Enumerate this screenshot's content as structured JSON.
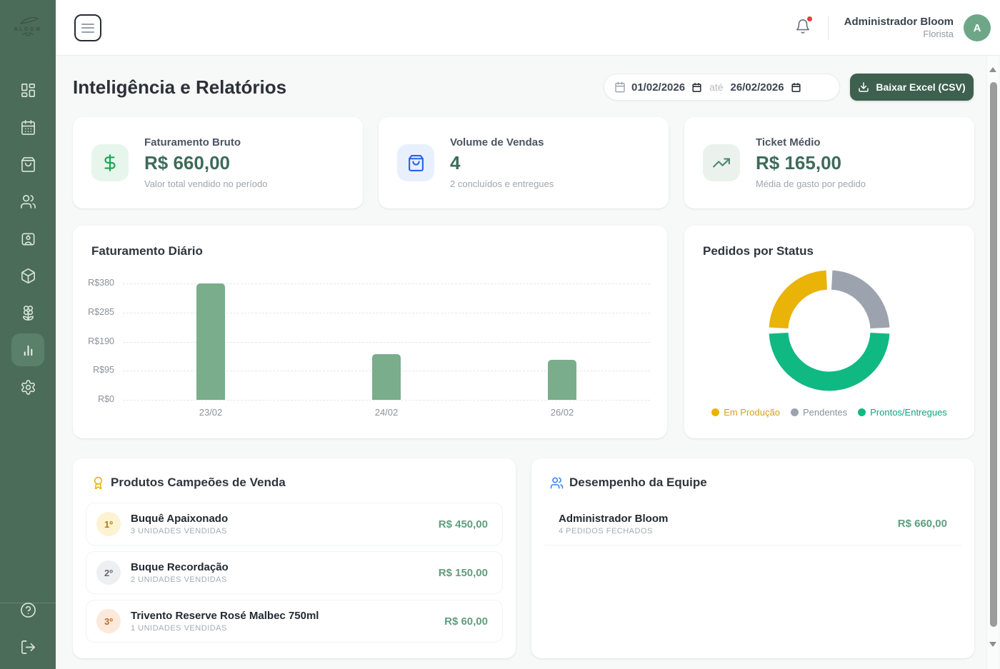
{
  "sidebar": {
    "logo_text": "BLOOM",
    "items": [
      {
        "name": "dashboard",
        "active": false
      },
      {
        "name": "calendar",
        "active": false
      },
      {
        "name": "orders",
        "active": false
      },
      {
        "name": "customers",
        "active": false
      },
      {
        "name": "staff",
        "active": false
      },
      {
        "name": "products",
        "active": false
      },
      {
        "name": "flowers",
        "active": false
      },
      {
        "name": "reports",
        "active": true
      },
      {
        "name": "settings",
        "active": false
      }
    ],
    "footer_items": [
      {
        "name": "help"
      },
      {
        "name": "logout"
      }
    ]
  },
  "topbar": {
    "user_name": "Administrador Bloom",
    "user_role": "Florista",
    "avatar_initial": "A",
    "has_notification": true
  },
  "page_header": {
    "title": "Inteligência e Relatórios",
    "date_from": "01/02/2026",
    "date_separator": "até",
    "date_to": "26/02/2026",
    "export_button_label": "Baixar Excel (CSV)"
  },
  "kpis": [
    {
      "title": "Faturamento Bruto",
      "value": "R$ 660,00",
      "subtitle": "Valor total vendido no período",
      "icon": "dollar-icon"
    },
    {
      "title": "Volume de Vendas",
      "value": "4",
      "subtitle": "2 concluídos e entregues",
      "icon": "shopping-bag-icon"
    },
    {
      "title": "Ticket Médio",
      "value": "R$ 165,00",
      "subtitle": "Média de gasto por pedido",
      "icon": "trending-up-icon"
    }
  ],
  "chart_data": [
    {
      "type": "bar",
      "title": "Faturamento Diário",
      "categories": [
        "23/02",
        "24/02",
        "26/02"
      ],
      "values": [
        380,
        150,
        130
      ],
      "ylim": [
        0,
        380
      ],
      "y_tick_labels": [
        "R$380",
        "R$285",
        "R$190",
        "R$95",
        "R$0"
      ],
      "bar_color": "#7aad8b",
      "grid": "horizontal-dashed",
      "xlabel": "",
      "ylabel": ""
    },
    {
      "type": "pie",
      "variant": "donut",
      "title": "Pedidos por Status",
      "slices": [
        {
          "label": "Pendentes",
          "value": 1,
          "color": "#9ca3af"
        },
        {
          "label": "Prontos/Entregues",
          "value": 2,
          "color": "#10b981"
        },
        {
          "label": "Em Produção",
          "value": 1,
          "color": "#eab308"
        }
      ],
      "legend": [
        {
          "label": "Em Produção",
          "color": "#d4a014",
          "dot": "#eab308"
        },
        {
          "label": "Pendentes",
          "color": "#8b919a",
          "dot": "#9ca3af"
        },
        {
          "label": "Prontos/Entregues",
          "color": "#10a482",
          "dot": "#10b981"
        }
      ],
      "legend_position": "bottom",
      "start_angle": "top",
      "direction": "clockwise"
    }
  ],
  "top_products": {
    "title": "Produtos Campeões de Venda",
    "items": [
      {
        "rank": "1º",
        "name": "Buquê Apaixonado",
        "detail": "3 UNIDADES VENDIDAS",
        "amount": "R$ 450,00"
      },
      {
        "rank": "2º",
        "name": "Buque Recordação",
        "detail": "2 UNIDADES VENDIDAS",
        "amount": "R$ 150,00"
      },
      {
        "rank": "3º",
        "name": "Trivento Reserve Rosé Malbec 750ml",
        "detail": "1 UNIDADES VENDIDAS",
        "amount": "R$ 60,00"
      }
    ]
  },
  "team_performance": {
    "title": "Desempenho da Equipe",
    "rows": [
      {
        "name": "Administrador Bloom",
        "detail": "4 PEDIDOS FECHADOS",
        "amount": "R$ 660,00"
      }
    ]
  },
  "colors": {
    "sidebar_bg": "#4b6c58",
    "sidebar_active": "#5b806a",
    "primary_button": "#3d614e",
    "kpi_value": "#3d6b5a",
    "money_green": "#5f9e7d",
    "bar_green": "#7aad8b",
    "donut_yellow": "#eab308",
    "donut_gray": "#9ca3af",
    "donut_green": "#10b981",
    "notification_red": "#e83b3b",
    "avatar_green": "#6ea787"
  }
}
